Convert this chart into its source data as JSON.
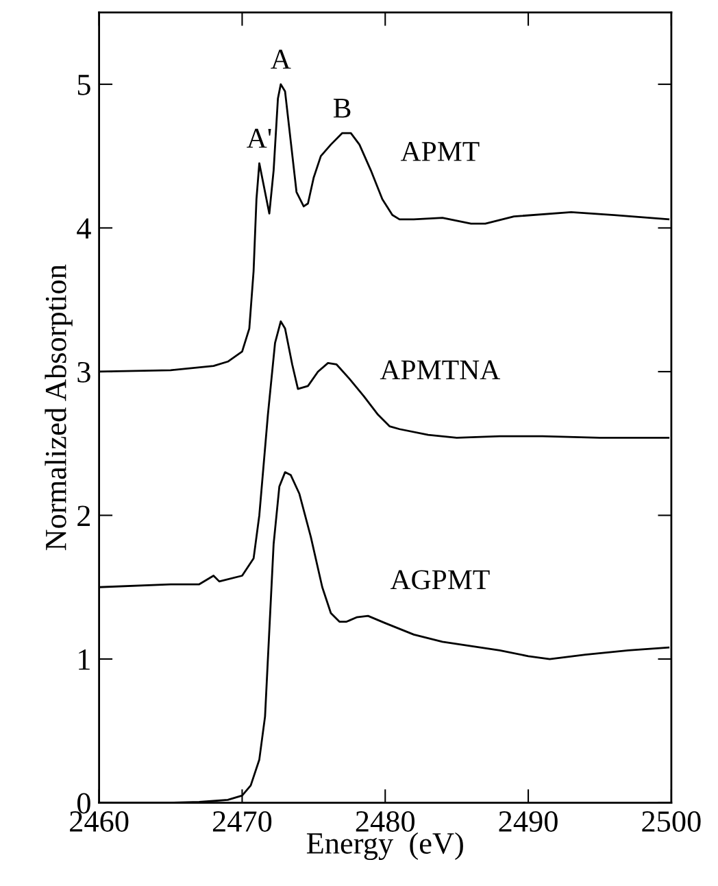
{
  "chart_data": {
    "type": "line",
    "xlabel": "Energy  (eV)",
    "ylabel": "Normalized Absorption",
    "xlim": [
      2460,
      2500
    ],
    "ylim": [
      0,
      5.5
    ],
    "xticks": [
      2460,
      2470,
      2480,
      2490,
      2500
    ],
    "yticks": [
      0,
      1,
      2,
      3,
      4,
      5
    ],
    "grid": false,
    "marker": "none",
    "line_style": "solid",
    "annotations": [
      {
        "text": "A'",
        "x": 2471.2,
        "y": 4.45
      },
      {
        "text": "A",
        "x": 2472.7,
        "y": 5.0
      },
      {
        "text": "B",
        "x": 2477.0,
        "y": 4.66
      }
    ],
    "series": [
      {
        "name": "APMT",
        "color": "#000000",
        "x": [
          2460,
          2465,
          2468,
          2469,
          2470,
          2470.5,
          2470.8,
          2471,
          2471.2,
          2471.5,
          2471.9,
          2472.2,
          2472.5,
          2472.7,
          2473,
          2473.4,
          2473.8,
          2474.3,
          2474.6,
          2475,
          2475.5,
          2476.2,
          2477,
          2477.6,
          2478.2,
          2479,
          2479.8,
          2480.5,
          2481,
          2482,
          2484,
          2486,
          2487,
          2489,
          2493,
          2496,
          2499.8
        ],
        "values": [
          3.0,
          3.01,
          3.04,
          3.07,
          3.14,
          3.3,
          3.7,
          4.2,
          4.45,
          4.3,
          4.1,
          4.4,
          4.9,
          5.0,
          4.95,
          4.6,
          4.25,
          4.15,
          4.17,
          4.35,
          4.5,
          4.58,
          4.66,
          4.66,
          4.58,
          4.4,
          4.2,
          4.09,
          4.06,
          4.06,
          4.07,
          4.03,
          4.03,
          4.08,
          4.11,
          4.09,
          4.06
        ]
      },
      {
        "name": "APMTNA",
        "color": "#000000",
        "x": [
          2460,
          2465,
          2467,
          2468,
          2468.4,
          2470,
          2470.8,
          2471.2,
          2471.8,
          2472.3,
          2472.7,
          2473,
          2473.5,
          2473.9,
          2474.6,
          2475.3,
          2476,
          2476.6,
          2477.5,
          2478.5,
          2479.5,
          2480.3,
          2481,
          2483,
          2485,
          2488,
          2491,
          2495,
          2499.8
        ],
        "values": [
          1.5,
          1.52,
          1.52,
          1.58,
          1.54,
          1.58,
          1.7,
          2.0,
          2.7,
          3.2,
          3.35,
          3.3,
          3.05,
          2.88,
          2.9,
          3.0,
          3.06,
          3.05,
          2.95,
          2.83,
          2.7,
          2.62,
          2.6,
          2.56,
          2.54,
          2.55,
          2.55,
          2.54,
          2.54
        ]
      },
      {
        "name": "AGPMT",
        "color": "#000000",
        "x": [
          2460,
          2465,
          2467,
          2469,
          2470,
          2470.6,
          2471.2,
          2471.6,
          2471.9,
          2472.2,
          2472.6,
          2473,
          2473.4,
          2474,
          2474.8,
          2475.6,
          2476.2,
          2476.8,
          2477.3,
          2478,
          2478.8,
          2480,
          2482,
          2484,
          2486,
          2488,
          2490,
          2491.5,
          2494,
          2497,
          2499.8
        ],
        "values": [
          0,
          0,
          0.005,
          0.02,
          0.05,
          0.12,
          0.3,
          0.6,
          1.2,
          1.8,
          2.2,
          2.3,
          2.28,
          2.15,
          1.85,
          1.5,
          1.32,
          1.26,
          1.26,
          1.29,
          1.3,
          1.25,
          1.17,
          1.12,
          1.09,
          1.06,
          1.02,
          1.0,
          1.03,
          1.06,
          1.08
        ]
      }
    ]
  }
}
